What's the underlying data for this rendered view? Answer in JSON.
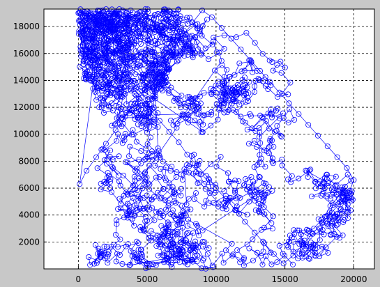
{
  "chart_data": {
    "type": "scatter",
    "title": "",
    "xlabel": "",
    "ylabel": "",
    "xlim": [
      -2500,
      21500
    ],
    "ylim": [
      0,
      19300
    ],
    "xticks": [
      0,
      5000,
      10000,
      15000,
      20000
    ],
    "yticks": [
      2000,
      4000,
      6000,
      8000,
      10000,
      12000,
      14000,
      16000,
      18000
    ],
    "xtick_labels": [
      "0",
      "5000",
      "10000",
      "15000",
      "20000"
    ],
    "ytick_labels": [
      "2000",
      "4000",
      "6000",
      "8000",
      "10000",
      "12000",
      "14000",
      "16000",
      "18000"
    ],
    "grid": true,
    "legend": "none",
    "marker": "circle",
    "connected": true,
    "point_count_approx": 2000,
    "x_range": [
      0,
      20000
    ],
    "y_range": [
      0,
      19300
    ],
    "density_note": "points densely cover [0,20000]x[0,19300]; sparse around (8000,14000) and (17000,15000)",
    "series": [
      {
        "color": "#0000ff",
        "x": [
          0,
          400,
          900,
          1500,
          2100,
          2600,
          3300,
          3900,
          4600,
          5200,
          5900,
          6600,
          7300,
          7900,
          8600,
          9300,
          10000,
          10700,
          11400,
          12100,
          12800,
          13500,
          14200,
          14900,
          15600,
          16300,
          17000,
          17700,
          18400,
          19100,
          19700,
          20000,
          19500,
          18800,
          18100,
          17400,
          16700,
          16000,
          15300,
          14600,
          13900,
          13200,
          12500,
          11800,
          11100,
          10400,
          9700,
          9000,
          8300,
          7600,
          6900,
          6200,
          5500,
          4800,
          4100,
          3400,
          2700,
          2000,
          1300,
          600,
          100
        ],
        "y": [
          19000,
          18400,
          17600,
          16800,
          16100,
          15200,
          14400,
          13600,
          12700,
          11900,
          11000,
          10200,
          9400,
          8500,
          7700,
          6900,
          6000,
          5200,
          4400,
          3500,
          2700,
          1900,
          1100,
          400,
          1000,
          1800,
          2600,
          3400,
          4200,
          5000,
          5800,
          6600,
          7500,
          8300,
          9100,
          9900,
          10700,
          11500,
          12300,
          13100,
          13900,
          14700,
          15500,
          16300,
          17100,
          17900,
          18700,
          19200,
          18300,
          17300,
          16300,
          15300,
          14300,
          13300,
          12300,
          11300,
          10300,
          9300,
          8300,
          7300,
          6300
        ]
      }
    ]
  }
}
